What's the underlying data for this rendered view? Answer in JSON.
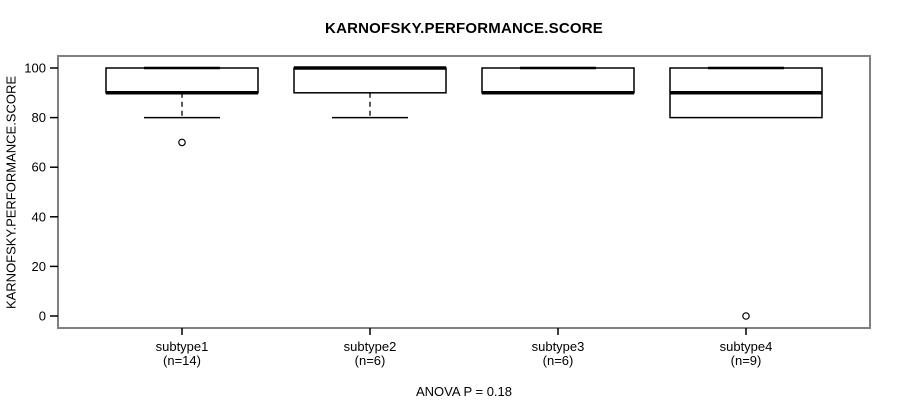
{
  "chart_data": {
    "type": "boxplot",
    "title": "KARNOFSKY.PERFORMANCE.SCORE",
    "ylabel": "KARNOFSKY.PERFORMANCE.SCORE",
    "xlabel": "",
    "ylim": [
      0,
      100
    ],
    "yticks": [
      0,
      20,
      40,
      60,
      80,
      100
    ],
    "grid": "off",
    "categories": [
      "subtype1",
      "subtype2",
      "subtype3",
      "subtype4"
    ],
    "category_sublabels": [
      "(n=14)",
      "(n=6)",
      "(n=6)",
      "(n=9)"
    ],
    "series": [
      {
        "name": "subtype1",
        "n": 14,
        "whisker_low": 80,
        "q1": 90,
        "median": 90,
        "q3": 100,
        "whisker_high": 100,
        "outliers": [
          70
        ]
      },
      {
        "name": "subtype2",
        "n": 6,
        "whisker_low": 80,
        "q1": 90,
        "median": 100,
        "q3": 100,
        "whisker_high": 100,
        "outliers": []
      },
      {
        "name": "subtype3",
        "n": 6,
        "whisker_low": 90,
        "q1": 90,
        "median": 90,
        "q3": 100,
        "whisker_high": 100,
        "outliers": []
      },
      {
        "name": "subtype4",
        "n": 9,
        "whisker_low": 80,
        "q1": 80,
        "median": 90,
        "q3": 100,
        "whisker_high": 100,
        "outliers": [
          0
        ]
      }
    ],
    "annotation": "ANOVA P = 0.18",
    "colors": {
      "box_fill": "#ffffff",
      "line": "#000000",
      "frame": "#808080",
      "background": "#ffffff"
    }
  }
}
